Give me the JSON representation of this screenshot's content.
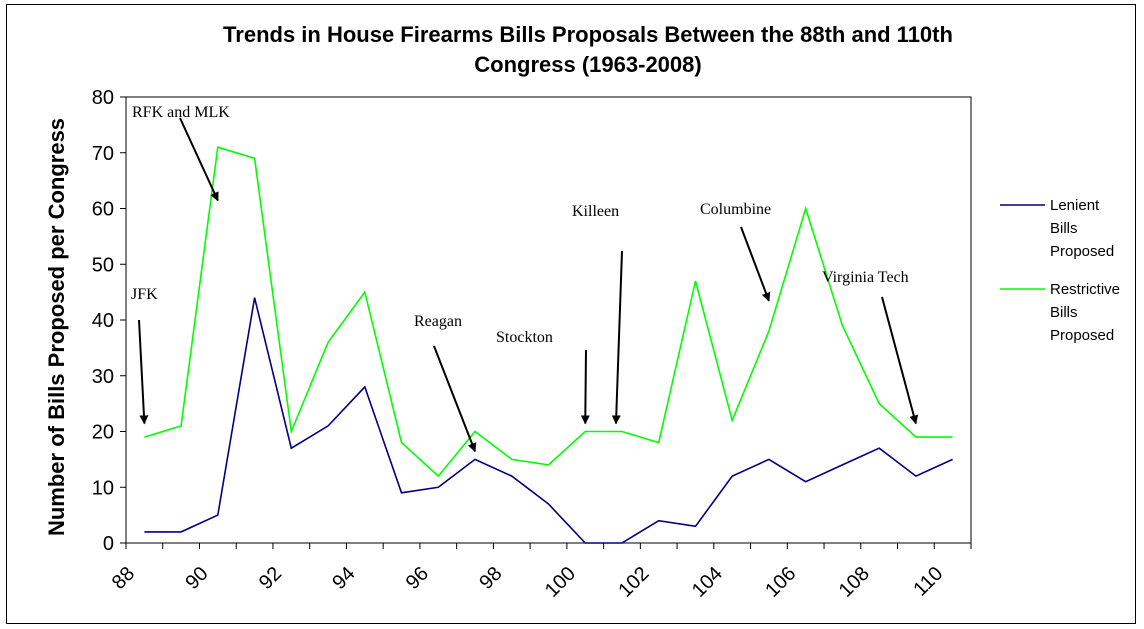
{
  "chart_data": {
    "type": "line",
    "title": "Trends in House Firearms Bills Proposals Between the 88th and 110th Congress (1963-2008)",
    "title_lines": [
      "Trends in House Firearms Bills Proposals Between the 88th and 110th",
      "Congress (1963-2008)"
    ],
    "xlabel": "",
    "ylabel": "Number of Bills Proposed per Congress",
    "x": [
      88,
      89,
      90,
      91,
      92,
      93,
      94,
      95,
      96,
      97,
      98,
      99,
      100,
      101,
      102,
      103,
      104,
      105,
      106,
      107,
      108,
      109,
      110
    ],
    "x_tick_labels": [
      "88",
      "90",
      "92",
      "94",
      "96",
      "98",
      "100",
      "102",
      "104",
      "106",
      "108",
      "110"
    ],
    "ylim": [
      0,
      80
    ],
    "y_ticks": [
      "0",
      "10",
      "20",
      "30",
      "40",
      "50",
      "60",
      "70",
      "80"
    ],
    "grid": false,
    "legend_placement": "right",
    "series": [
      {
        "name": "Lenient Bills Proposed",
        "name_lines": [
          "Lenient",
          "Bills",
          "Proposed"
        ],
        "color": "#000080",
        "values": [
          2,
          2,
          5,
          44,
          17,
          21,
          28,
          9,
          10,
          15,
          12,
          7,
          0,
          0,
          4,
          3,
          12,
          15,
          11,
          14,
          17,
          12,
          15
        ]
      },
      {
        "name": "Restrictive Bills Proposed",
        "name_lines": [
          "Restrictive",
          "Bills",
          "Proposed"
        ],
        "color": "#00ff00",
        "values": [
          19,
          21,
          71,
          69,
          20,
          36,
          45,
          18,
          12,
          20,
          15,
          14,
          20,
          20,
          18,
          47,
          22,
          38,
          60,
          39,
          25,
          19,
          19
        ]
      }
    ],
    "annotations": [
      {
        "text": "RFK and MLK",
        "target_x": 90,
        "target_y": 60
      },
      {
        "text": "JFK",
        "target_x": 88,
        "target_y": 20
      },
      {
        "text": "Reagan",
        "target_x": 97,
        "target_y": 15
      },
      {
        "text": "Stockton",
        "target_x": 100,
        "target_y": 20
      },
      {
        "text": "Killeen",
        "target_x": 101,
        "target_y": 20
      },
      {
        "text": "Columbine",
        "target_x": 105,
        "target_y": 42
      },
      {
        "text": "Virginia Tech",
        "target_x": 109,
        "target_y": 20
      }
    ]
  }
}
